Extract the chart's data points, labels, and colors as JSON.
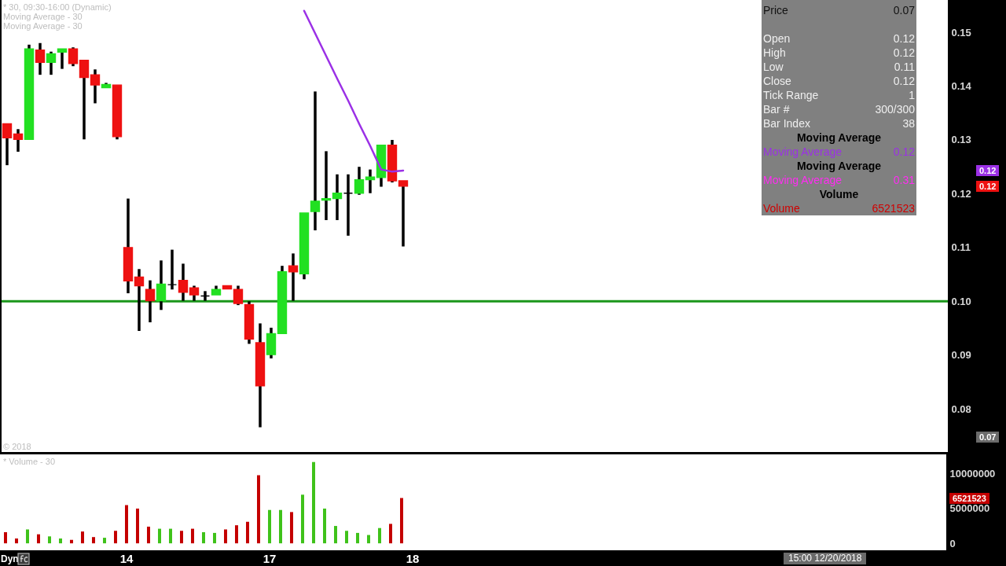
{
  "chart_data": [
    {
      "type": "candlestick",
      "title": "* 30, 09:30-16:00 (Dynamic)",
      "categories": [
        null,
        null,
        null,
        null,
        null,
        null,
        null,
        null,
        null,
        null,
        null,
        "14",
        null,
        null,
        null,
        null,
        null,
        null,
        null,
        null,
        null,
        null,
        null,
        null,
        "17",
        null,
        null,
        null,
        null,
        null,
        null,
        null,
        null,
        null,
        null,
        null,
        null,
        "18",
        null,
        null,
        null,
        null,
        null,
        null,
        null,
        null,
        null,
        null,
        null,
        null,
        null,
        null,
        null,
        null,
        null,
        null,
        null,
        null,
        null,
        null,
        null,
        null,
        null,
        null,
        null,
        null,
        null,
        null,
        null,
        null,
        null,
        null,
        null,
        null,
        null,
        null,
        null,
        null,
        null,
        null,
        null,
        null,
        null,
        null,
        null,
        null
      ],
      "ohlc": [
        [
          0.133,
          0.133,
          0.1253,
          0.1304
        ],
        [
          0.1311,
          0.132,
          0.1278,
          0.1301
        ],
        [
          0.1301,
          0.1477,
          0.1301,
          0.1469
        ],
        [
          0.1467,
          0.148,
          0.1421,
          0.1444
        ],
        [
          0.1444,
          0.1464,
          0.1421,
          0.146
        ],
        [
          0.1463,
          0.1469,
          0.1432,
          0.1469
        ],
        [
          0.1469,
          0.1472,
          0.1437,
          0.1442
        ],
        [
          0.1448,
          0.1448,
          0.1301,
          0.1416
        ],
        [
          0.1421,
          0.1431,
          0.1368,
          0.1402
        ],
        [
          0.1397,
          0.1406,
          0.1397,
          0.1403
        ],
        [
          0.1402,
          0.1402,
          0.1301,
          0.1306
        ],
        [
          0.11,
          0.1191,
          0.1015,
          0.1038
        ],
        [
          0.1045,
          0.106,
          0.0945,
          0.1029
        ],
        [
          0.1022,
          0.1039,
          0.0961,
          0.1001
        ],
        [
          0.1001,
          0.1076,
          0.0984,
          0.1032
        ],
        [
          0.1031,
          0.1096,
          0.1022,
          0.1031
        ],
        [
          0.1039,
          0.107,
          0.1001,
          0.1017
        ],
        [
          0.1025,
          0.1029,
          0.1001,
          0.1012
        ],
        [
          0.101,
          0.1019,
          0.1001,
          0.101
        ],
        [
          0.1012,
          0.1029,
          0.1012,
          0.1022
        ],
        [
          0.1029,
          0.1029,
          0.1023,
          0.1023
        ],
        [
          0.1022,
          0.1029,
          0.0993,
          0.0996
        ],
        [
          0.0994,
          0.1,
          0.0921,
          0.093
        ],
        [
          0.0923,
          0.0959,
          0.0766,
          0.0843
        ],
        [
          0.0901,
          0.0951,
          0.0894,
          0.094
        ],
        [
          0.094,
          0.1066,
          0.094,
          0.1055
        ],
        [
          0.1066,
          0.1089,
          0.1001,
          0.1055
        ],
        [
          0.1051,
          0.1164,
          0.1041,
          0.1164
        ],
        [
          0.1167,
          0.139,
          0.1132,
          0.1186
        ],
        [
          0.1188,
          0.1279,
          0.1151,
          0.1191
        ],
        [
          0.1191,
          0.1236,
          0.1151,
          0.1201
        ],
        [
          0.1201,
          0.1236,
          0.1122,
          0.1201
        ],
        [
          0.1201,
          0.125,
          0.1198,
          0.1226
        ],
        [
          0.1226,
          0.1245,
          0.1201,
          0.1231
        ],
        [
          0.123,
          0.129,
          0.1213,
          0.129
        ],
        [
          0.129,
          0.13,
          0.1221,
          0.1224
        ],
        [
          0.1224,
          0.1224,
          0.1102,
          0.1214
        ],
        null,
        null,
        null,
        null,
        null,
        null,
        null,
        null,
        null,
        null,
        null,
        null,
        null,
        null,
        null,
        null,
        null,
        null,
        null,
        null,
        null,
        null,
        null,
        null,
        null,
        null,
        null,
        null,
        null,
        null,
        null,
        null,
        null,
        null,
        null,
        null,
        null,
        null,
        null,
        null,
        null,
        null,
        null,
        null,
        null,
        null,
        null,
        null,
        null
      ],
      "colors": [
        "#ee1111",
        "#ee1111",
        "#22e022",
        "#ee1111",
        "#22e022",
        "#22e022",
        "#ee1111",
        "#ee1111",
        "#ee1111",
        "#22e022",
        "#ee1111",
        "#ee1111",
        "#ee1111",
        "#ee1111",
        "#22e022",
        "#000000",
        "#ee1111",
        "#ee1111",
        "#000000",
        "#22e022",
        "#ee1111",
        "#ee1111",
        "#ee1111",
        "#ee1111",
        "#22e022",
        "#22e022",
        "#ee1111",
        "#22e022",
        "#22e022",
        "#22e022",
        "#22e022",
        "#000000",
        "#22e022",
        "#22e022",
        "#22e022",
        "#ee1111",
        "#ee1111",
        null,
        null,
        null,
        null,
        null,
        null,
        null,
        null,
        null,
        null,
        null,
        null,
        null,
        null,
        null,
        null,
        null,
        null,
        null,
        null,
        null,
        null,
        null,
        null,
        null,
        null,
        null,
        null,
        null,
        null,
        null,
        null,
        null,
        null,
        null,
        null,
        null,
        null,
        null,
        null,
        null,
        null,
        null,
        null,
        null,
        null,
        null,
        null,
        null
      ],
      "series": [
        {
          "type": "line",
          "color": "#9b30e6",
          "values": [
            null,
            null,
            null,
            null,
            null,
            null,
            null,
            null,
            null,
            null,
            null,
            null,
            null,
            null,
            null,
            null,
            null,
            null,
            null,
            null,
            null,
            null,
            null,
            null,
            null,
            null,
            null,
            0.154,
            0.1498,
            0.1456,
            0.1414,
            0.1373,
            0.133,
            0.1289,
            0.1245,
            0.1241,
            0.1243,
            null,
            null,
            null,
            null,
            null,
            null,
            null,
            null,
            null,
            null,
            null,
            null,
            null,
            null,
            null,
            null,
            null,
            null,
            null,
            null,
            null,
            null,
            null,
            null,
            null,
            null,
            null,
            null,
            null,
            null,
            null,
            null,
            null,
            null,
            null,
            null,
            null,
            null,
            null,
            null,
            null,
            null,
            null,
            null,
            null,
            null,
            null,
            null,
            null
          ]
        }
      ],
      "ylim": [
        0.072,
        0.156
      ],
      "yticks": [
        0.08,
        0.09,
        {
          "value": 0.1,
          "label": "0.10"
        },
        0.11,
        0.12,
        0.13,
        0.14,
        0.15
      ],
      "ref_lines": [
        {
          "axis": "y",
          "value": 0.1,
          "color": "#1a961a"
        }
      ],
      "tick_labels": "y",
      "annotations": [
        "Moving Average - 30",
        "Moving Average - 30",
        "© 2018",
        "0.12",
        "0.12",
        "0.07"
      ]
    },
    {
      "type": "bar",
      "title": "* Volume - 30",
      "categories": [
        null,
        null,
        null,
        null,
        null,
        null,
        null,
        null,
        null,
        null,
        null,
        "14",
        null,
        null,
        null,
        null,
        null,
        null,
        null,
        null,
        null,
        null,
        null,
        null,
        "17",
        null,
        null,
        null,
        null,
        null,
        null,
        null,
        null,
        null,
        null,
        null,
        null,
        "18",
        null,
        null,
        null,
        null,
        null,
        null,
        null,
        null,
        null,
        null,
        null,
        null,
        null,
        null,
        null,
        null,
        null,
        null,
        null,
        null,
        null,
        null,
        null,
        null,
        null,
        null,
        null,
        null,
        null,
        null,
        null,
        null,
        null,
        null,
        null,
        null,
        null,
        null,
        null,
        null,
        null,
        null,
        null,
        null,
        null,
        null,
        null,
        null
      ],
      "values": [
        1600000,
        700000,
        2000000,
        1300000,
        1000000,
        700000,
        500000,
        1700000,
        900000,
        800000,
        1800000,
        5500000,
        5000000,
        2400000,
        2100000,
        2100000,
        1800000,
        2100000,
        1600000,
        1500000,
        2000000,
        2600000,
        3100000,
        9800000,
        4800000,
        4800000,
        4500000,
        7000000,
        11700000,
        5000000,
        2500000,
        1800000,
        1500000,
        1200000,
        2200000,
        2800000,
        6521523,
        null,
        null,
        null,
        null,
        null,
        null,
        null,
        null,
        null,
        null,
        null,
        null,
        null,
        null,
        null,
        null,
        null,
        null,
        null,
        null,
        null,
        null,
        null,
        null,
        null,
        null,
        null,
        null,
        null,
        null,
        null,
        null,
        null,
        null,
        null,
        null,
        null,
        null,
        null,
        null,
        null,
        null,
        null,
        null,
        null,
        null,
        null,
        null,
        null
      ],
      "colors": [
        "#c40000",
        "#c40000",
        "#3fc21a",
        "#c40000",
        "#3fc21a",
        "#3fc21a",
        "#c40000",
        "#c40000",
        "#c40000",
        "#3fc21a",
        "#c40000",
        "#c40000",
        "#c40000",
        "#c40000",
        "#3fc21a",
        "#3fc21a",
        "#c40000",
        "#c40000",
        "#3fc21a",
        "#3fc21a",
        "#c40000",
        "#c40000",
        "#c40000",
        "#c40000",
        "#3fc21a",
        "#3fc21a",
        "#c40000",
        "#3fc21a",
        "#3fc21a",
        "#3fc21a",
        "#3fc21a",
        "#3fc21a",
        "#3fc21a",
        "#3fc21a",
        "#3fc21a",
        "#c40000",
        "#c40000",
        null,
        null,
        null,
        null,
        null,
        null,
        null,
        null,
        null,
        null,
        null,
        null,
        null,
        null,
        null,
        null,
        null,
        null,
        null,
        null,
        null,
        null,
        null,
        null,
        null,
        null,
        null,
        null,
        null,
        null,
        null,
        null,
        null,
        null,
        null,
        null,
        null,
        null,
        null,
        null,
        null,
        null,
        null,
        null,
        null,
        null,
        null,
        null,
        null
      ],
      "ylim": [
        -1000000,
        12800000
      ],
      "yticks": [
        0,
        5000000,
        10000000
      ],
      "annotations": [
        "Dyn",
        "15:00 12/20/2018",
        "6521523"
      ]
    },
    {
      "type": "other",
      "annotations": [
        "Price",
        "0.07",
        "Open",
        "0.12",
        "High",
        "0.12",
        "Low",
        "0.11",
        "Close",
        "0.12",
        "Tick Range",
        "1",
        "Bar #",
        "300/300",
        "Bar Index",
        "38",
        "Moving Average",
        "Moving Average",
        "0.12",
        "Moving Average",
        "Moving Average",
        "0.31",
        "Volume",
        "Volume",
        "6521523"
      ]
    }
  ]
}
